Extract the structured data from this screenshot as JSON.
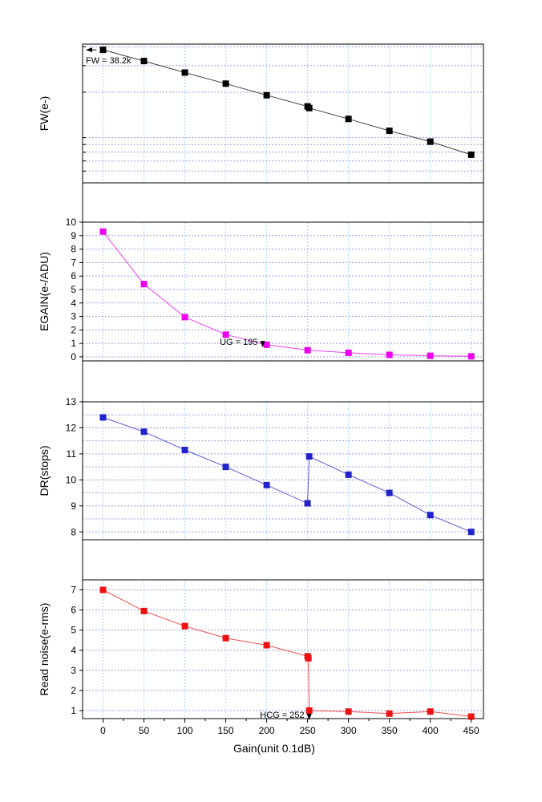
{
  "chart_data": {
    "type": "line",
    "xlabel": "Gain(unit 0.1dB)",
    "xlim": [
      -25,
      465
    ],
    "xticks": [
      0,
      50,
      100,
      150,
      200,
      250,
      300,
      350,
      400,
      450
    ],
    "grid": true,
    "panels": [
      {
        "ylabel": "FW(e-)",
        "scale": "log",
        "ylim_log10": [
          3.7,
          4.62
        ],
        "yticks": [],
        "color": "#000000",
        "series": [
          {
            "x": [
              0,
              50,
              100,
              150,
              200,
              250,
              252,
              300,
              350,
              400,
              450
            ],
            "y": [
              38200,
              32200,
              27000,
              22800,
              19100,
              16100,
              15700,
              13300,
              11100,
              9400,
              7700
            ]
          }
        ],
        "annotation": {
          "text": "FW = 38.2k",
          "x": 0,
          "y": 38200,
          "kind": "left-arrow"
        }
      },
      {
        "ylabel": "EGAIN(e-/ADU)",
        "scale": "linear",
        "ylim": [
          -0.3,
          10
        ],
        "yticks": [
          0,
          1,
          2,
          3,
          4,
          5,
          6,
          7,
          8,
          9,
          10
        ],
        "color": "#ee00ee",
        "series": [
          {
            "x": [
              0,
              50,
              100,
              150,
              200,
              250,
              300,
              350,
              400,
              450
            ],
            "y": [
              9.3,
              5.4,
              2.95,
              1.65,
              0.9,
              0.5,
              0.3,
              0.15,
              0.08,
              0.04
            ]
          }
        ],
        "annotation": {
          "text": "UG = 195",
          "x": 195,
          "y": 1.0,
          "kind": "down-arrow"
        }
      },
      {
        "ylabel": "DR(stops)",
        "scale": "linear",
        "ylim": [
          7.7,
          13
        ],
        "yticks": [
          8,
          9,
          10,
          11,
          12,
          13
        ],
        "color": "#2222cc",
        "series": [
          {
            "x": [
              0,
              50,
              100,
              150,
              200,
              250,
              252,
              300,
              350,
              400,
              450
            ],
            "y": [
              12.4,
              11.85,
              11.15,
              10.5,
              9.8,
              9.1,
              10.9,
              10.2,
              9.5,
              8.65,
              8.0
            ]
          }
        ]
      },
      {
        "ylabel": "Read noise(e-rms)",
        "scale": "linear",
        "ylim": [
          0.6,
          7.5
        ],
        "yticks": [
          1,
          2,
          3,
          4,
          5,
          6,
          7
        ],
        "color": "#ee1111",
        "series": [
          {
            "x": [
              0,
              50,
              100,
              150,
              200,
              250,
              251,
              252,
              300,
              350,
              400,
              450
            ],
            "y": [
              7.0,
              5.95,
              5.2,
              4.6,
              4.25,
              3.7,
              3.6,
              1.0,
              0.95,
              0.85,
              0.95,
              0.7
            ]
          }
        ],
        "annotation": {
          "text": "HCG = 252",
          "x": 252,
          "y": 1.0,
          "kind": "down-arrow"
        }
      }
    ]
  }
}
